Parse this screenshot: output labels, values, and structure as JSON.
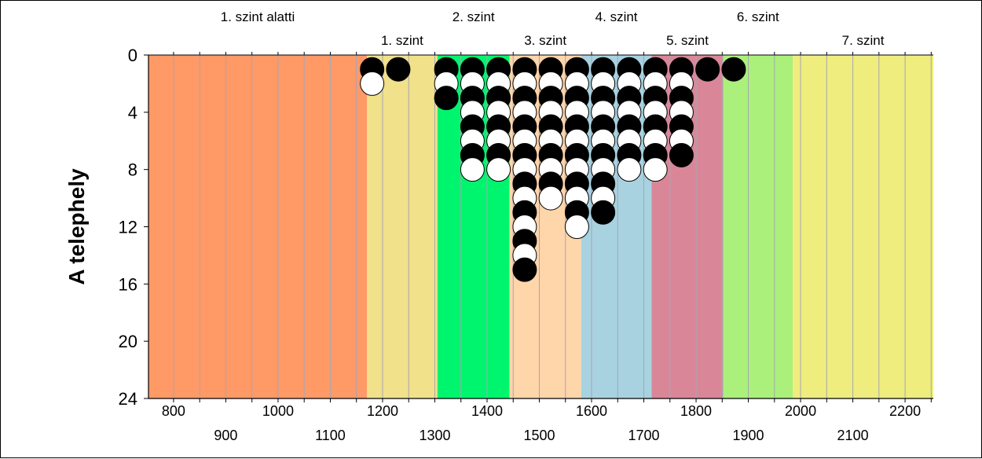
{
  "chart_data": {
    "type": "scatter",
    "ylabel": "A telephely",
    "xlim": [
      752,
      2254
    ],
    "ylim": [
      0,
      24
    ],
    "y_inverted": true,
    "y_ticks": [
      0,
      4,
      8,
      12,
      16,
      20,
      24
    ],
    "x_ticks_top": [
      800,
      1000,
      1200,
      1400,
      1600,
      1800,
      2000,
      2200
    ],
    "x_ticks_bottom": [
      900,
      1100,
      1300,
      1500,
      1700,
      1900,
      2100
    ],
    "x_minor_step": 50,
    "vertical_grid": true,
    "bands": [
      {
        "label": "1. szint alatti",
        "from": 752,
        "to": 1170,
        "color": "#FF9966",
        "row": 1
      },
      {
        "label": "1. szint",
        "from": 1170,
        "to": 1305,
        "color": "#F0E18A",
        "row": 2
      },
      {
        "label": "2. szint",
        "from": 1305,
        "to": 1443,
        "color": "#00F56E",
        "row": 1
      },
      {
        "label": "3. szint",
        "from": 1443,
        "to": 1580,
        "color": "#FFD5AA",
        "row": 2
      },
      {
        "label": "4. szint",
        "from": 1580,
        "to": 1715,
        "color": "#A8D2E0",
        "row": 1
      },
      {
        "label": "5. szint",
        "from": 1715,
        "to": 1852,
        "color": "#D98798",
        "row": 2
      },
      {
        "label": "6. szint",
        "from": 1852,
        "to": 1985,
        "color": "#ABF07A",
        "row": 1
      },
      {
        "label": "7. szint",
        "from": 1985,
        "to": 2254,
        "color": "#EEED7E",
        "row": 2
      }
    ],
    "points": [
      {
        "x": 1180,
        "fills": [
          "black",
          "white"
        ]
      },
      {
        "x": 1230,
        "fills": [
          "black"
        ]
      },
      {
        "x": 1322,
        "fills": [
          "black",
          "white",
          "black"
        ]
      },
      {
        "x": 1372,
        "fills": [
          "black",
          "white",
          "black",
          "white",
          "black",
          "white",
          "black",
          "white"
        ]
      },
      {
        "x": 1422,
        "fills": [
          "black",
          "white",
          "black",
          "white",
          "black",
          "white",
          "black",
          "white"
        ]
      },
      {
        "x": 1472,
        "fills": [
          "black",
          "white",
          "black",
          "white",
          "black",
          "white",
          "black",
          "white",
          "black",
          "white",
          "black",
          "white",
          "black",
          "white",
          "black"
        ]
      },
      {
        "x": 1522,
        "fills": [
          "black",
          "white",
          "black",
          "white",
          "black",
          "white",
          "black",
          "white",
          "black",
          "white"
        ]
      },
      {
        "x": 1572,
        "fills": [
          "black",
          "white",
          "black",
          "white",
          "black",
          "white",
          "black",
          "white",
          "black",
          "white",
          "black",
          "white"
        ]
      },
      {
        "x": 1622,
        "fills": [
          "black",
          "white",
          "black",
          "white",
          "black",
          "white",
          "black",
          "white",
          "black",
          "white",
          "black"
        ]
      },
      {
        "x": 1672,
        "fills": [
          "black",
          "white",
          "black",
          "white",
          "black",
          "white",
          "black",
          "white"
        ]
      },
      {
        "x": 1722,
        "fills": [
          "black",
          "white",
          "black",
          "white",
          "black",
          "white",
          "black",
          "white"
        ]
      },
      {
        "x": 1772,
        "fills": [
          "black",
          "white",
          "black",
          "white",
          "black",
          "white",
          "black"
        ]
      },
      {
        "x": 1822,
        "fills": [
          "black"
        ]
      },
      {
        "x": 1872,
        "fills": [
          "black"
        ]
      }
    ]
  }
}
